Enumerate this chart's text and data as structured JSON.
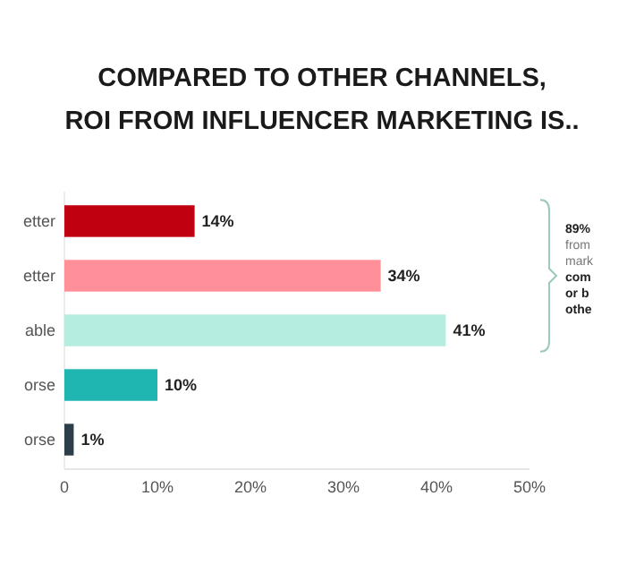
{
  "chart_data": {
    "type": "bar",
    "orientation": "horizontal",
    "title": "COMPARED TO OTHER CHANNELS,\nROI FROM INFLUENCER MARKETING IS..",
    "categories": [
      "etter",
      "etter",
      "able",
      "orse",
      "orse"
    ],
    "values": [
      14,
      34,
      41,
      10,
      1
    ],
    "colors": [
      "#c00010",
      "#ff8f98",
      "#b5ede0",
      "#1fb5b0",
      "#2c3e4a"
    ],
    "value_labels": [
      "14%",
      "34%",
      "41%",
      "10%",
      "1%"
    ],
    "xlim": [
      0,
      50
    ],
    "xticks": [
      0,
      {
        "value": 10,
        "label": "10%"
      },
      {
        "value": 20,
        "label": "20%"
      },
      {
        "value": 30,
        "label": "30%"
      },
      {
        "value": 40,
        "label": "40%"
      },
      {
        "value": 50,
        "label": "50%"
      }
    ],
    "annotations": [
      "89%\nfrom\nmark\ncom\nor b\nothe"
    ],
    "grid": false
  }
}
